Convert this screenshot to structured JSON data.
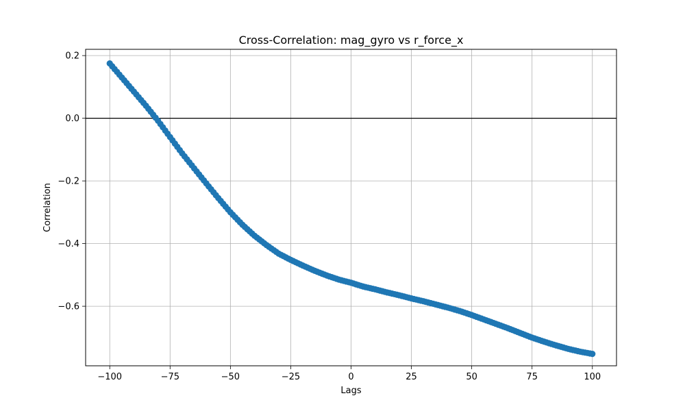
{
  "chart_data": {
    "type": "scatter",
    "title": "Cross-Correlation: mag_gyro vs r_force_x",
    "xlabel": "Lags",
    "ylabel": "Correlation",
    "xlim": [
      -110,
      110
    ],
    "ylim": [
      -0.79,
      0.22
    ],
    "xticks": [
      -100,
      -75,
      -50,
      -25,
      0,
      25,
      50,
      75,
      100
    ],
    "xtick_labels": [
      "−100",
      "−75",
      "−50",
      "−25",
      "0",
      "25",
      "50",
      "75",
      "100"
    ],
    "yticks": [
      0.2,
      0.0,
      -0.2,
      -0.4,
      -0.6
    ],
    "ytick_labels": [
      "0.2",
      "0.0",
      "−0.2",
      "−0.4",
      "−0.6"
    ],
    "grid": true,
    "reference_line_y": 0,
    "marker_color": "#1f77b4",
    "series": [
      {
        "x": [
          -100,
          -95,
          -90,
          -85,
          -80,
          -75,
          -70,
          -65,
          -60,
          -55,
          -50,
          -45,
          -40,
          -35,
          -30,
          -25,
          -20,
          -15,
          -10,
          -5,
          0,
          5,
          10,
          15,
          20,
          25,
          30,
          35,
          40,
          45,
          50,
          55,
          60,
          65,
          70,
          75,
          80,
          85,
          90,
          95,
          100
        ],
        "values": [
          0.175,
          0.13,
          0.085,
          0.04,
          -0.008,
          -0.06,
          -0.112,
          -0.16,
          -0.208,
          -0.255,
          -0.3,
          -0.34,
          -0.375,
          -0.405,
          -0.432,
          -0.452,
          -0.47,
          -0.487,
          -0.502,
          -0.515,
          -0.525,
          -0.537,
          -0.546,
          -0.556,
          -0.565,
          -0.575,
          -0.584,
          -0.594,
          -0.604,
          -0.615,
          -0.628,
          -0.642,
          -0.656,
          -0.67,
          -0.685,
          -0.7,
          -0.713,
          -0.725,
          -0.736,
          -0.745,
          -0.752
        ]
      }
    ]
  }
}
